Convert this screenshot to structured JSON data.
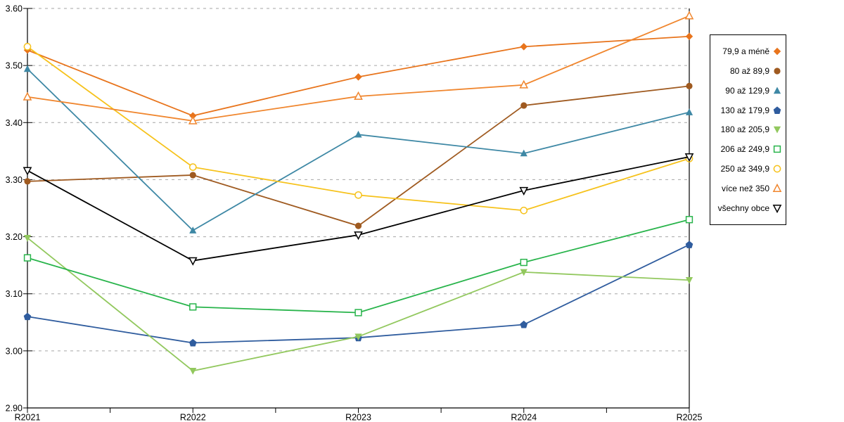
{
  "chart_data": {
    "type": "line",
    "categories": [
      "R2021",
      "R2022",
      "R2023",
      "R2024",
      "R2025"
    ],
    "y_axis": {
      "range": [
        2.9,
        3.6
      ],
      "step": 0.1,
      "tick_labels": [
        "3.60",
        "3.50",
        "3.40",
        "3.30",
        "3.20",
        "3.10",
        "3.00",
        "2.90"
      ]
    },
    "grid": {
      "horizontal": true,
      "style": "dashed",
      "color": "#A6A6A6"
    },
    "axes_color": "#000000",
    "legend": {
      "position": "right",
      "border": true
    },
    "series": [
      {
        "name": "79,9 a méně",
        "color": "#E8741C",
        "marker": "diamond",
        "marker_fill": "solid",
        "values": [
          3.527,
          3.412,
          3.48,
          3.533,
          3.551
        ]
      },
      {
        "name": "80 až 89,9",
        "color": "#9F5A20",
        "marker": "circle",
        "marker_fill": "solid",
        "values": [
          3.297,
          3.308,
          3.219,
          3.43,
          3.464
        ]
      },
      {
        "name": "90 až 129,9",
        "color": "#3E88A5",
        "marker": "triangle-up",
        "marker_fill": "solid",
        "values": [
          3.494,
          3.211,
          3.379,
          3.346,
          3.418
        ]
      },
      {
        "name": "130 až 179,9",
        "color": "#2F5C9E",
        "marker": "pentagon",
        "marker_fill": "solid",
        "values": [
          3.06,
          3.014,
          3.023,
          3.046,
          3.186
        ]
      },
      {
        "name": "180 až 205,9",
        "color": "#92C85E",
        "marker": "triangle-down",
        "marker_fill": "solid",
        "values": [
          3.198,
          2.965,
          3.025,
          3.138,
          3.124
        ]
      },
      {
        "name": "206 až 249,9",
        "color": "#28B44B",
        "marker": "square",
        "marker_fill": "open",
        "values": [
          3.163,
          3.077,
          3.067,
          3.155,
          3.23
        ]
      },
      {
        "name": "250 až 349,9",
        "color": "#F6C21B",
        "marker": "circle",
        "marker_fill": "open",
        "values": [
          3.533,
          3.322,
          3.273,
          3.246,
          3.337
        ]
      },
      {
        "name": "více než 350",
        "color": "#F0862E",
        "marker": "triangle-up",
        "marker_fill": "open",
        "values": [
          3.445,
          3.403,
          3.446,
          3.466,
          3.587
        ]
      },
      {
        "name": "všechny obce",
        "color": "#000000",
        "marker": "triangle-down",
        "marker_fill": "open",
        "values": [
          3.316,
          3.158,
          3.203,
          3.281,
          3.34
        ]
      }
    ]
  }
}
